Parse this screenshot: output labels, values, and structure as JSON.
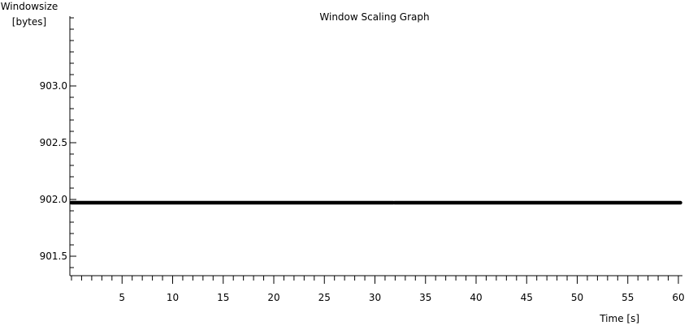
{
  "chart_data": {
    "type": "scatter",
    "title": "Window Scaling Graph",
    "ylabel": [
      "Windowsize",
      "[bytes]"
    ],
    "xlabel": "Time [s]",
    "xlim": [
      -0.2,
      60.5
    ],
    "ylim": [
      901.33,
      903.92
    ],
    "x_major_ticks": [
      5,
      10,
      15,
      20,
      25,
      30,
      35,
      40,
      45,
      50,
      55,
      60
    ],
    "x_minor_step": 1,
    "y_major_ticks": [
      901.5,
      902.0,
      902.5,
      903.0
    ],
    "y_tick_labels": [
      "901.5",
      "902.0",
      "902.5",
      "903.0"
    ],
    "y_minor_step": 0.1,
    "grid": false,
    "series": [
      {
        "segments": [
          {
            "x": [
              0.0,
              31.8
            ],
            "y": 902.0
          },
          {
            "x": [
              31.95,
              60.2
            ],
            "y": 902.0
          }
        ],
        "color": "#000000"
      }
    ]
  }
}
